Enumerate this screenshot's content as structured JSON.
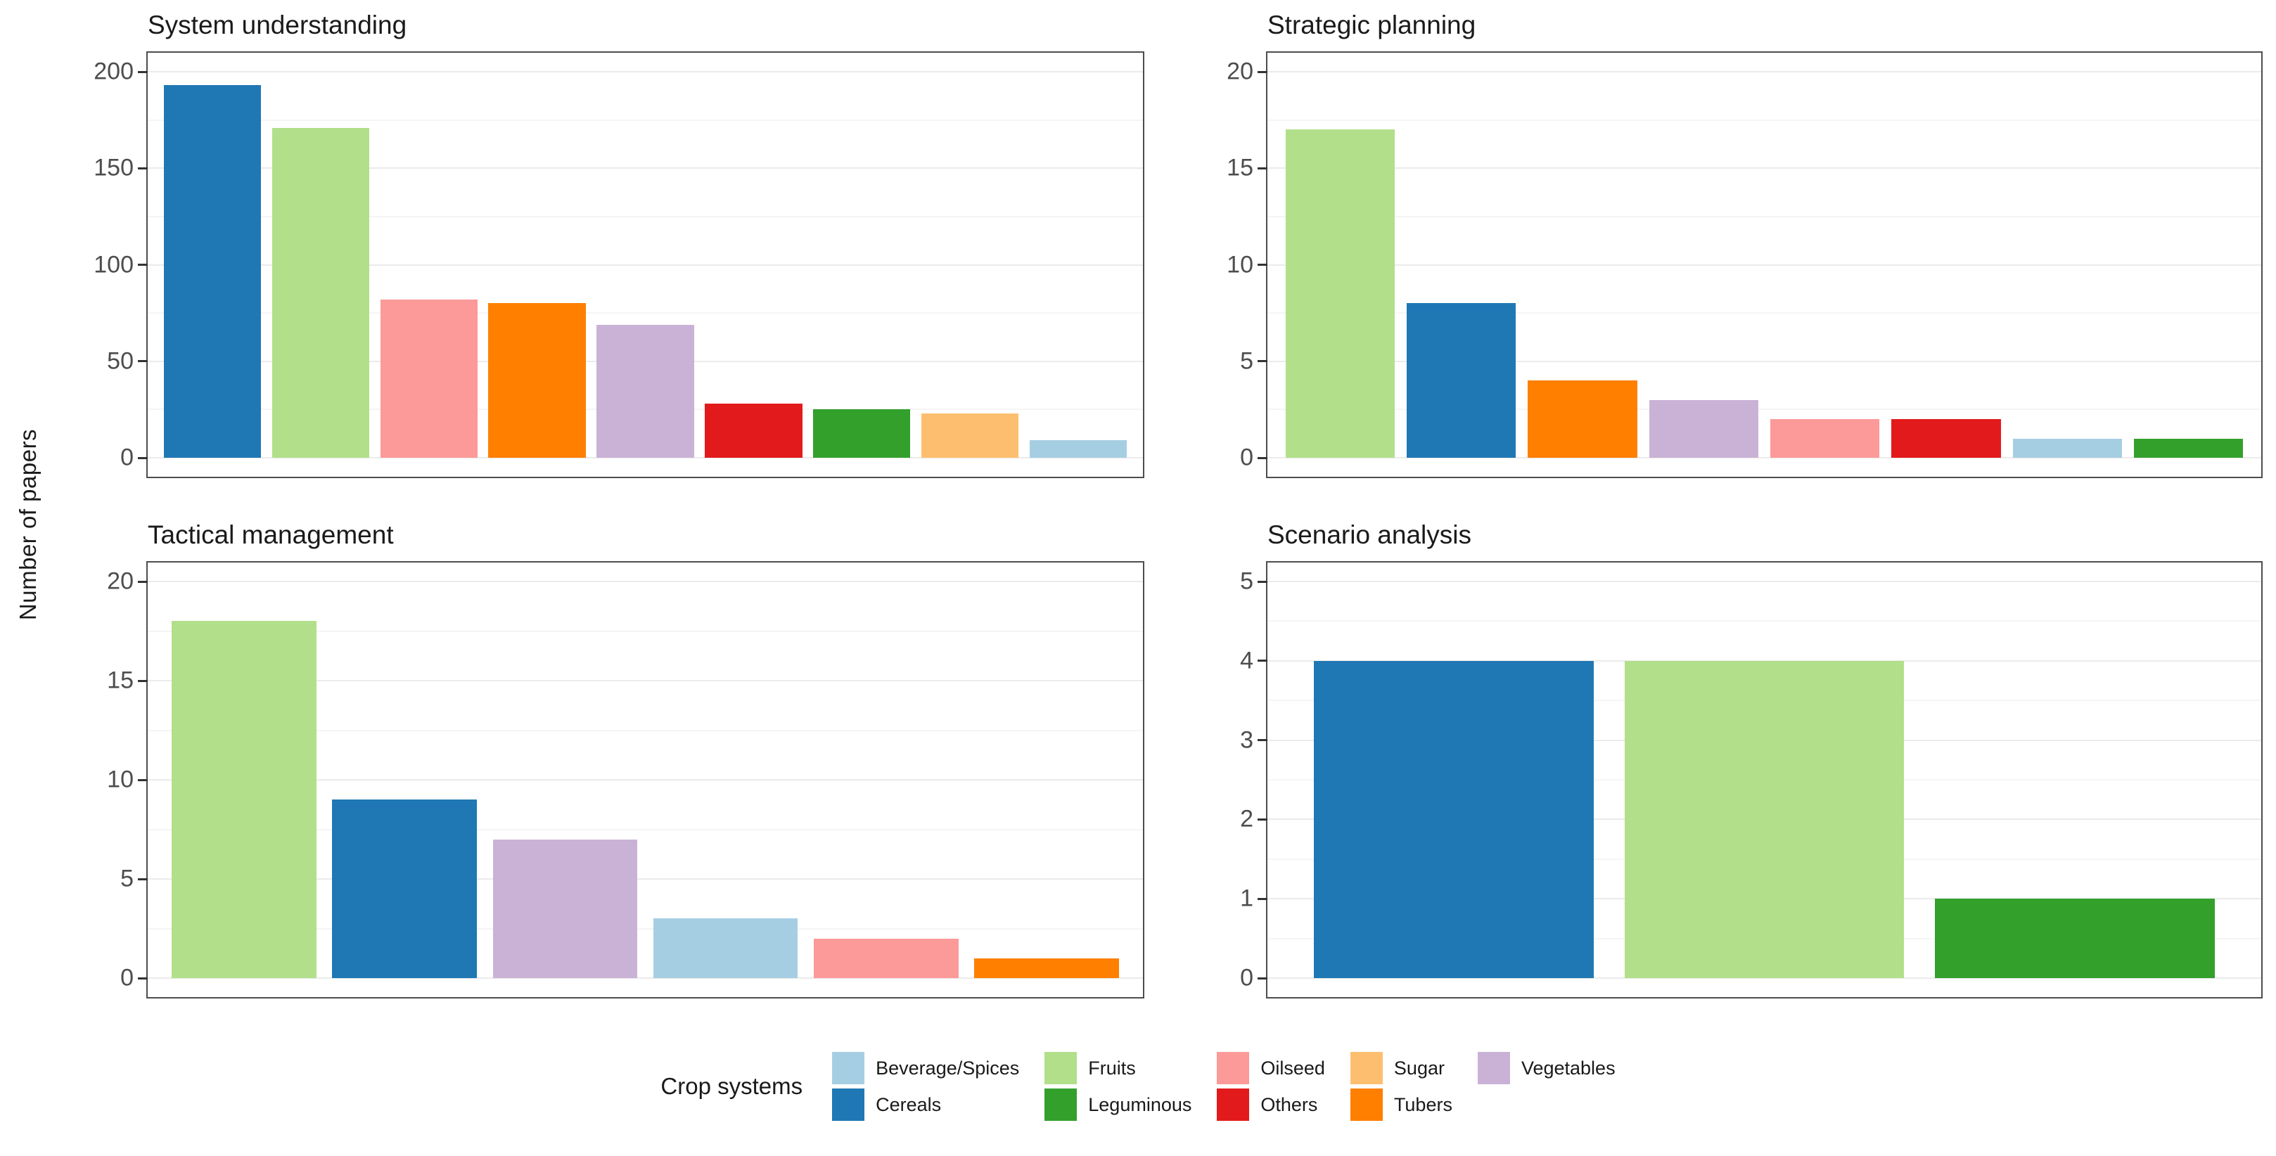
{
  "figure_ylabel": "Number of papers",
  "palette": {
    "Beverage/Spices": "#A6CEE3",
    "Cereals": "#1F78B4",
    "Fruits": "#B2DF8A",
    "Leguminous": "#33A02C",
    "Oilseed": "#FB9A99",
    "Others": "#E31A1C",
    "Sugar": "#FDBF6F",
    "Tubers": "#FF7F00",
    "Vegetables": "#CAB2D6"
  },
  "chart_data": [
    {
      "type": "bar",
      "title": "System understanding",
      "ylabel": "Number of papers",
      "ylim": [
        0,
        200
      ],
      "yticks": [
        0,
        50,
        100,
        150,
        200
      ],
      "grid": true,
      "legend_position": "bottom",
      "categories": [
        "Cereals",
        "Fruits",
        "Oilseed",
        "Tubers",
        "Vegetables",
        "Others",
        "Leguminous",
        "Sugar",
        "Beverage/Spices"
      ],
      "values": [
        193,
        171,
        82,
        80,
        69,
        28,
        25,
        23,
        9
      ]
    },
    {
      "type": "bar",
      "title": "Strategic planning",
      "ylabel": "Number of papers",
      "ylim": [
        0,
        20
      ],
      "yticks": [
        0,
        5,
        10,
        15,
        20
      ],
      "grid": true,
      "legend_position": "bottom",
      "categories": [
        "Fruits",
        "Cereals",
        "Tubers",
        "Vegetables",
        "Oilseed",
        "Others",
        "Beverage/Spices",
        "Leguminous"
      ],
      "values": [
        17,
        8,
        4,
        3,
        2,
        2,
        1,
        1
      ]
    },
    {
      "type": "bar",
      "title": "Tactical management",
      "ylabel": "Number of papers",
      "ylim": [
        0,
        20
      ],
      "yticks": [
        0,
        5,
        10,
        15,
        20
      ],
      "grid": true,
      "legend_position": "bottom",
      "categories": [
        "Fruits",
        "Cereals",
        "Vegetables",
        "Beverage/Spices",
        "Oilseed",
        "Tubers"
      ],
      "values": [
        18,
        9,
        7,
        3,
        2,
        1
      ]
    },
    {
      "type": "bar",
      "title": "Scenario analysis",
      "ylabel": "Number of papers",
      "ylim": [
        0,
        5
      ],
      "yticks": [
        0,
        1,
        2,
        3,
        4,
        5
      ],
      "grid": true,
      "legend_position": "bottom",
      "categories": [
        "Cereals",
        "Fruits",
        "Leguminous"
      ],
      "values": [
        4,
        4,
        1
      ]
    }
  ],
  "legend": {
    "title": "Crop systems",
    "columns": [
      [
        "Beverage/Spices",
        "Cereals"
      ],
      [
        "Fruits",
        "Leguminous"
      ],
      [
        "Oilseed",
        "Others"
      ],
      [
        "Sugar",
        "Tubers"
      ],
      [
        "Vegetables"
      ]
    ]
  },
  "style": {
    "panel_border": "#4d4d4d",
    "grid_major": "#ebebeb",
    "grid_minor": "#f5f5f5",
    "tick_color": "#333333",
    "tick_label_color": "#4d4d4d",
    "text_color": "#1a1a1a"
  }
}
